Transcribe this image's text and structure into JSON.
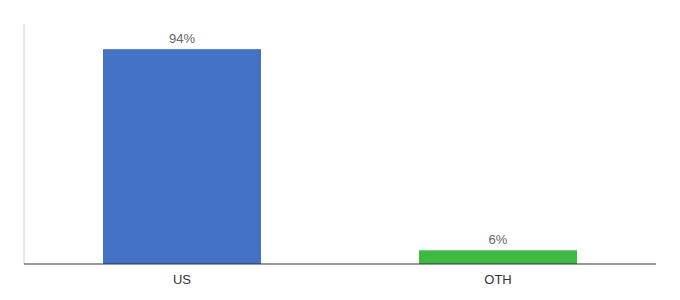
{
  "chart_data": {
    "type": "bar",
    "categories": [
      "US",
      "OTH"
    ],
    "values": [
      94,
      6
    ],
    "value_labels": [
      "94%",
      "6%"
    ],
    "colors": [
      "#4472c4",
      "#3cb843"
    ],
    "ylim": [
      0,
      105
    ],
    "data_labels": true,
    "tick_labels": "x",
    "grid": false
  }
}
